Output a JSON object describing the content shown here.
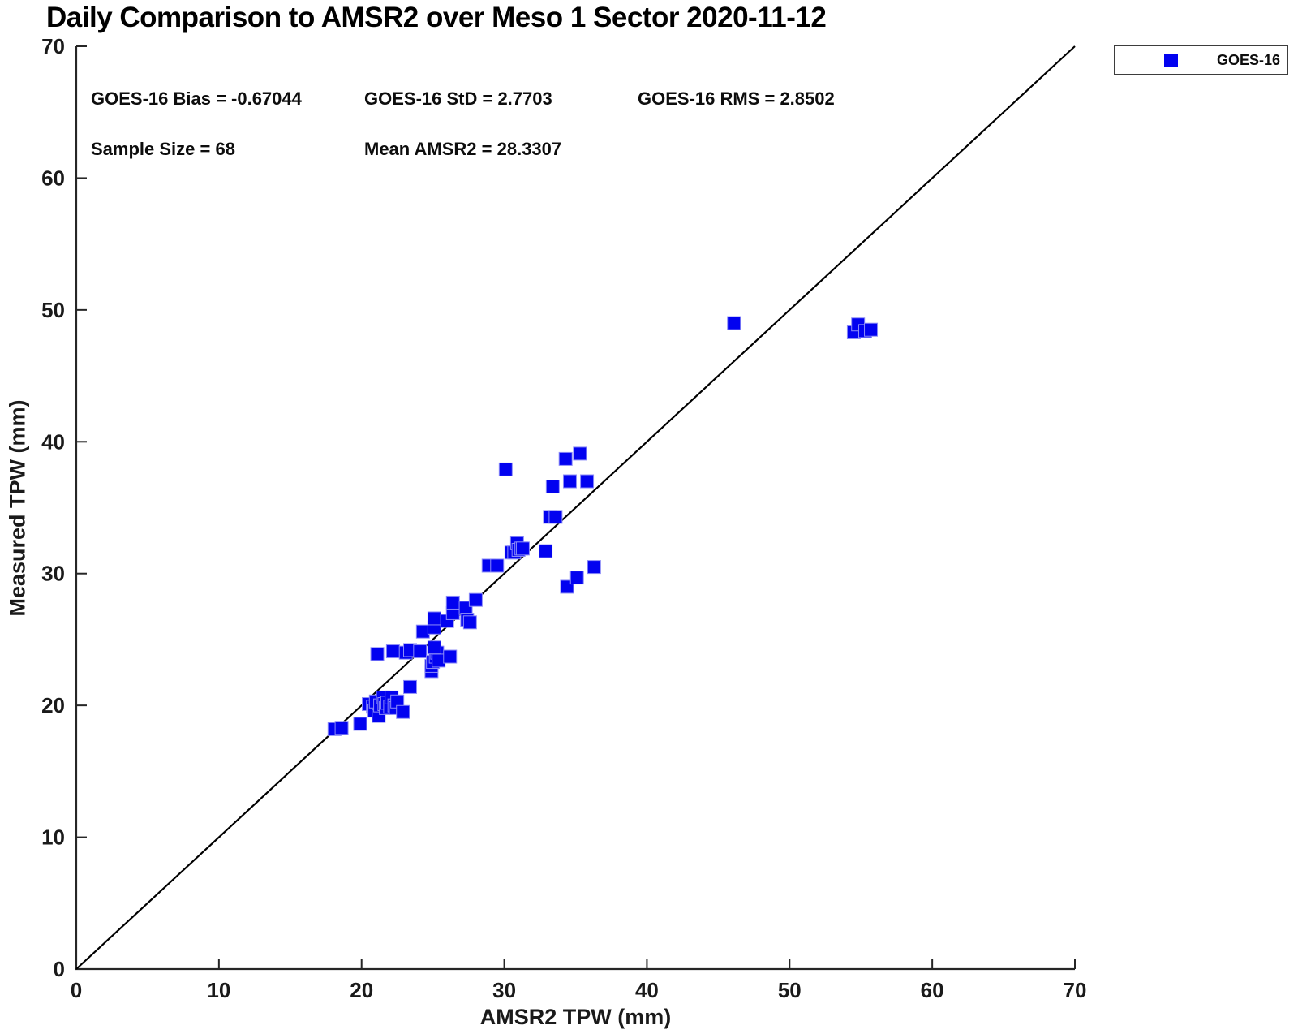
{
  "title": "Daily Comparison to AMSR2 over Meso 1 Sector 2020-11-12",
  "stats": {
    "bias": "GOES-16 Bias = -0.67044",
    "std": "GOES-16 StD = 2.7703",
    "rms": "GOES-16 RMS = 2.8502",
    "sample_size": "Sample Size = 68",
    "mean_amsr2": "Mean AMSR2 = 28.3307"
  },
  "legend": {
    "position": "top-right",
    "entries": [
      {
        "label": "GOES-16",
        "marker": "square",
        "color": "#0202f0"
      }
    ]
  },
  "chart_data": {
    "type": "scatter",
    "title": "Daily Comparison to AMSR2 over Meso 1 Sector 2020-11-12",
    "xlabel": "AMSR2 TPW (mm)",
    "ylabel": "Measured TPW (mm)",
    "xlim": [
      0,
      70
    ],
    "ylim": [
      0,
      70
    ],
    "xticks": [
      0,
      10,
      20,
      30,
      40,
      50,
      60,
      70
    ],
    "yticks": [
      0,
      10,
      20,
      30,
      40,
      50,
      60,
      70
    ],
    "grid": false,
    "legend_position": "top-right-outside",
    "reference_line": {
      "type": "1:1",
      "from": [
        0,
        0
      ],
      "to": [
        70,
        70
      ],
      "color": "#000000"
    },
    "series": [
      {
        "name": "GOES-16",
        "marker": "square",
        "color": "#0202f0",
        "edge_color": "#8c8cf7",
        "points": [
          [
            18.1,
            18.2
          ],
          [
            18.6,
            18.3
          ],
          [
            19.9,
            18.6
          ],
          [
            20.5,
            20.1
          ],
          [
            20.8,
            19.9
          ],
          [
            20.9,
            19.6
          ],
          [
            21.0,
            20.3
          ],
          [
            21.2,
            19.2
          ],
          [
            21.3,
            20.0
          ],
          [
            21.5,
            20.6
          ],
          [
            21.6,
            20.1
          ],
          [
            21.7,
            19.8
          ],
          [
            21.8,
            20.2
          ],
          [
            22.0,
            19.9
          ],
          [
            22.1,
            20.6
          ],
          [
            22.3,
            20.0
          ],
          [
            22.4,
            19.8
          ],
          [
            22.5,
            20.3
          ],
          [
            22.9,
            19.5
          ],
          [
            23.4,
            21.4
          ],
          [
            21.1,
            23.9
          ],
          [
            22.2,
            24.1
          ],
          [
            23.1,
            24.0
          ],
          [
            23.4,
            24.2
          ],
          [
            24.1,
            24.1
          ],
          [
            24.9,
            22.6
          ],
          [
            24.9,
            23.0
          ],
          [
            25.0,
            23.3
          ],
          [
            25.2,
            23.7
          ],
          [
            25.3,
            24.0
          ],
          [
            25.4,
            23.4
          ],
          [
            26.2,
            23.7
          ],
          [
            25.1,
            24.4
          ],
          [
            24.3,
            25.6
          ],
          [
            25.1,
            25.9
          ],
          [
            25.1,
            26.6
          ],
          [
            26.0,
            26.4
          ],
          [
            26.4,
            27.0
          ],
          [
            26.4,
            27.8
          ],
          [
            27.3,
            27.4
          ],
          [
            27.4,
            26.5
          ],
          [
            27.6,
            26.3
          ],
          [
            28.0,
            28.0
          ],
          [
            28.9,
            30.6
          ],
          [
            29.5,
            30.6
          ],
          [
            30.5,
            31.6
          ],
          [
            30.7,
            31.6
          ],
          [
            30.9,
            32.3
          ],
          [
            31.0,
            31.8
          ],
          [
            31.2,
            31.9
          ],
          [
            31.3,
            31.9
          ],
          [
            32.9,
            31.7
          ],
          [
            33.2,
            34.3
          ],
          [
            33.6,
            34.3
          ],
          [
            34.4,
            29.0
          ],
          [
            35.1,
            29.7
          ],
          [
            36.3,
            30.5
          ],
          [
            30.1,
            37.9
          ],
          [
            34.3,
            38.7
          ],
          [
            35.3,
            39.1
          ],
          [
            33.4,
            36.6
          ],
          [
            34.6,
            37.0
          ],
          [
            35.8,
            37.0
          ],
          [
            46.1,
            49.0
          ],
          [
            54.5,
            48.3
          ],
          [
            54.8,
            48.9
          ],
          [
            55.3,
            48.4
          ],
          [
            55.7,
            48.5
          ]
        ]
      }
    ]
  }
}
